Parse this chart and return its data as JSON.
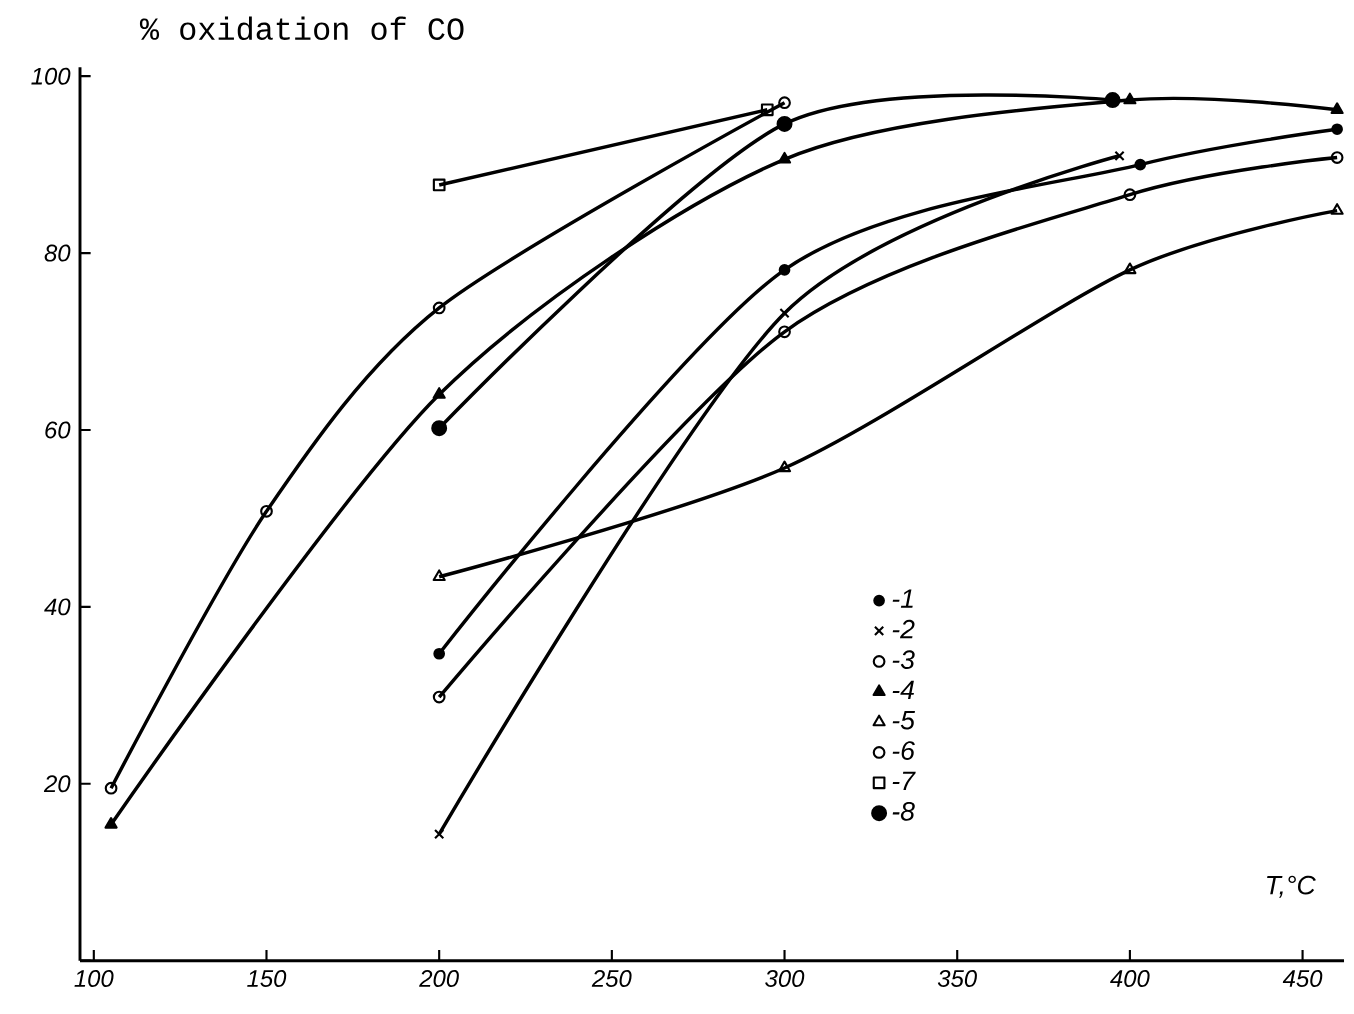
{
  "chart_data": {
    "type": "line",
    "ylabel": "% oxidation of CO",
    "xlabel": "T,°C",
    "xlim": [
      96,
      462
    ],
    "ylim": [
      0,
      101
    ],
    "xticks": [
      100,
      150,
      200,
      250,
      300,
      350,
      400,
      450
    ],
    "yticks": [
      {
        "value": 0,
        "label": null
      },
      20,
      40,
      60,
      80,
      100
    ],
    "grid": false,
    "legend": "bottom right",
    "series": [
      {
        "name": "-1",
        "color": "#000000",
        "marker": "circle",
        "x": [
          200,
          300,
          403,
          460
        ],
        "values": [
          34.7,
          78.1,
          90,
          94
        ]
      },
      {
        "name": "-2",
        "color": "#000000",
        "marker": "cross",
        "x": [
          200,
          300,
          397
        ],
        "values": [
          14.3,
          73.2,
          91
        ]
      },
      {
        "name": "-3",
        "color": "#000000",
        "marker": "circle-open",
        "x": [
          105,
          150,
          200,
          300
        ],
        "values": [
          19.5,
          50.8,
          73.8,
          97
        ]
      },
      {
        "name": "-4",
        "color": "#000000",
        "marker": "triangle",
        "x": [
          105,
          200,
          300,
          400,
          460
        ],
        "values": [
          15.4,
          64,
          90.6,
          97.3,
          96.2
        ]
      },
      {
        "name": "-5",
        "color": "#000000",
        "marker": "triangle-open",
        "x": [
          200,
          300,
          400,
          460
        ],
        "values": [
          43.4,
          55.7,
          78.1,
          84.8
        ]
      },
      {
        "name": "-6",
        "color": "#000000",
        "marker": "circle-open",
        "x": [
          200,
          300,
          400,
          460
        ],
        "values": [
          29.8,
          71.1,
          86.6,
          90.8
        ]
      },
      {
        "name": "-7",
        "color": "#000000",
        "marker": "square-open",
        "x": [
          200,
          295
        ],
        "values": [
          87.7,
          96.2
        ]
      },
      {
        "name": "-8",
        "color": "#000000",
        "marker": "circle-large",
        "x": [
          200,
          300,
          395
        ],
        "values": [
          60.2,
          94.6,
          97.3
        ]
      }
    ]
  }
}
